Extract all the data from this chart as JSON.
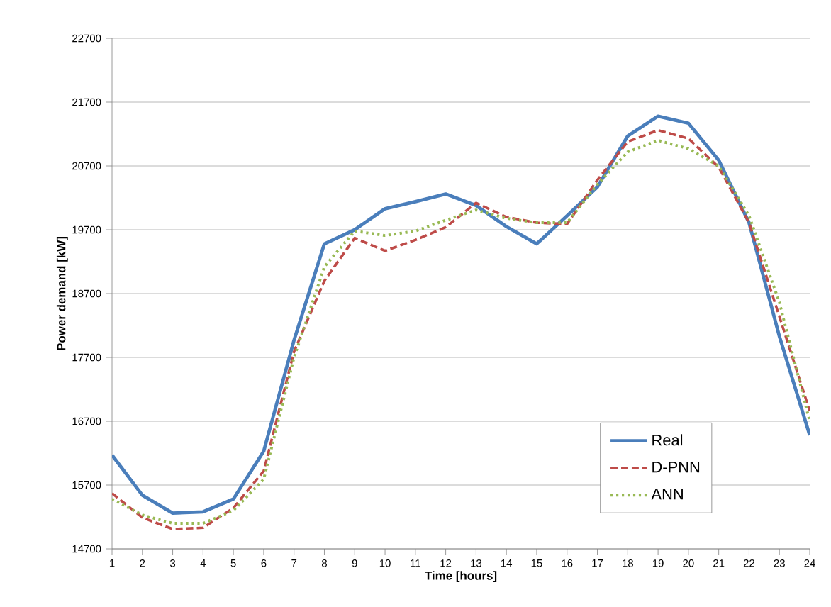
{
  "chart_data": {
    "type": "line",
    "xlabel": "Time [hours]",
    "ylabel": "Power demand [kW]",
    "x": [
      1,
      2,
      3,
      4,
      5,
      6,
      7,
      8,
      9,
      10,
      11,
      12,
      13,
      14,
      15,
      16,
      17,
      18,
      19,
      20,
      21,
      22,
      23,
      24
    ],
    "xlim": [
      1,
      24
    ],
    "xticks": [
      1,
      2,
      3,
      4,
      5,
      6,
      7,
      8,
      9,
      10,
      11,
      12,
      13,
      14,
      15,
      16,
      17,
      18,
      19,
      20,
      21,
      22,
      23,
      24
    ],
    "ylim": [
      14700,
      22700
    ],
    "yticks": [
      14700,
      15700,
      16700,
      17700,
      18700,
      19700,
      20700,
      21700,
      22700
    ],
    "grid": "y",
    "legend": "bottom right",
    "series": [
      {
        "name": "Real",
        "color": "#4a7ebb",
        "line_style": "solid",
        "values": [
          16170,
          15540,
          15260,
          15280,
          15480,
          16230,
          17970,
          19480,
          19700,
          20030,
          20140,
          20260,
          20080,
          19750,
          19480,
          19920,
          20370,
          21170,
          21480,
          21370,
          20790,
          19810,
          18030,
          16480
        ]
      },
      {
        "name": "D-PNN",
        "color": "#be4b48",
        "line_style": "dashed",
        "values": [
          15570,
          15190,
          15010,
          15030,
          15340,
          15920,
          17790,
          18900,
          19570,
          19370,
          19540,
          19740,
          20120,
          19900,
          19810,
          19790,
          20480,
          21080,
          21260,
          21130,
          20680,
          19810,
          18340,
          16860
        ]
      },
      {
        "name": "ANN",
        "color": "#98b954",
        "line_style": "dotted",
        "values": [
          15480,
          15230,
          15100,
          15100,
          15300,
          15790,
          17700,
          19120,
          19680,
          19610,
          19680,
          19850,
          20010,
          19880,
          19810,
          19810,
          20410,
          20920,
          21100,
          20970,
          20700,
          19920,
          18560,
          16700
        ]
      }
    ]
  }
}
